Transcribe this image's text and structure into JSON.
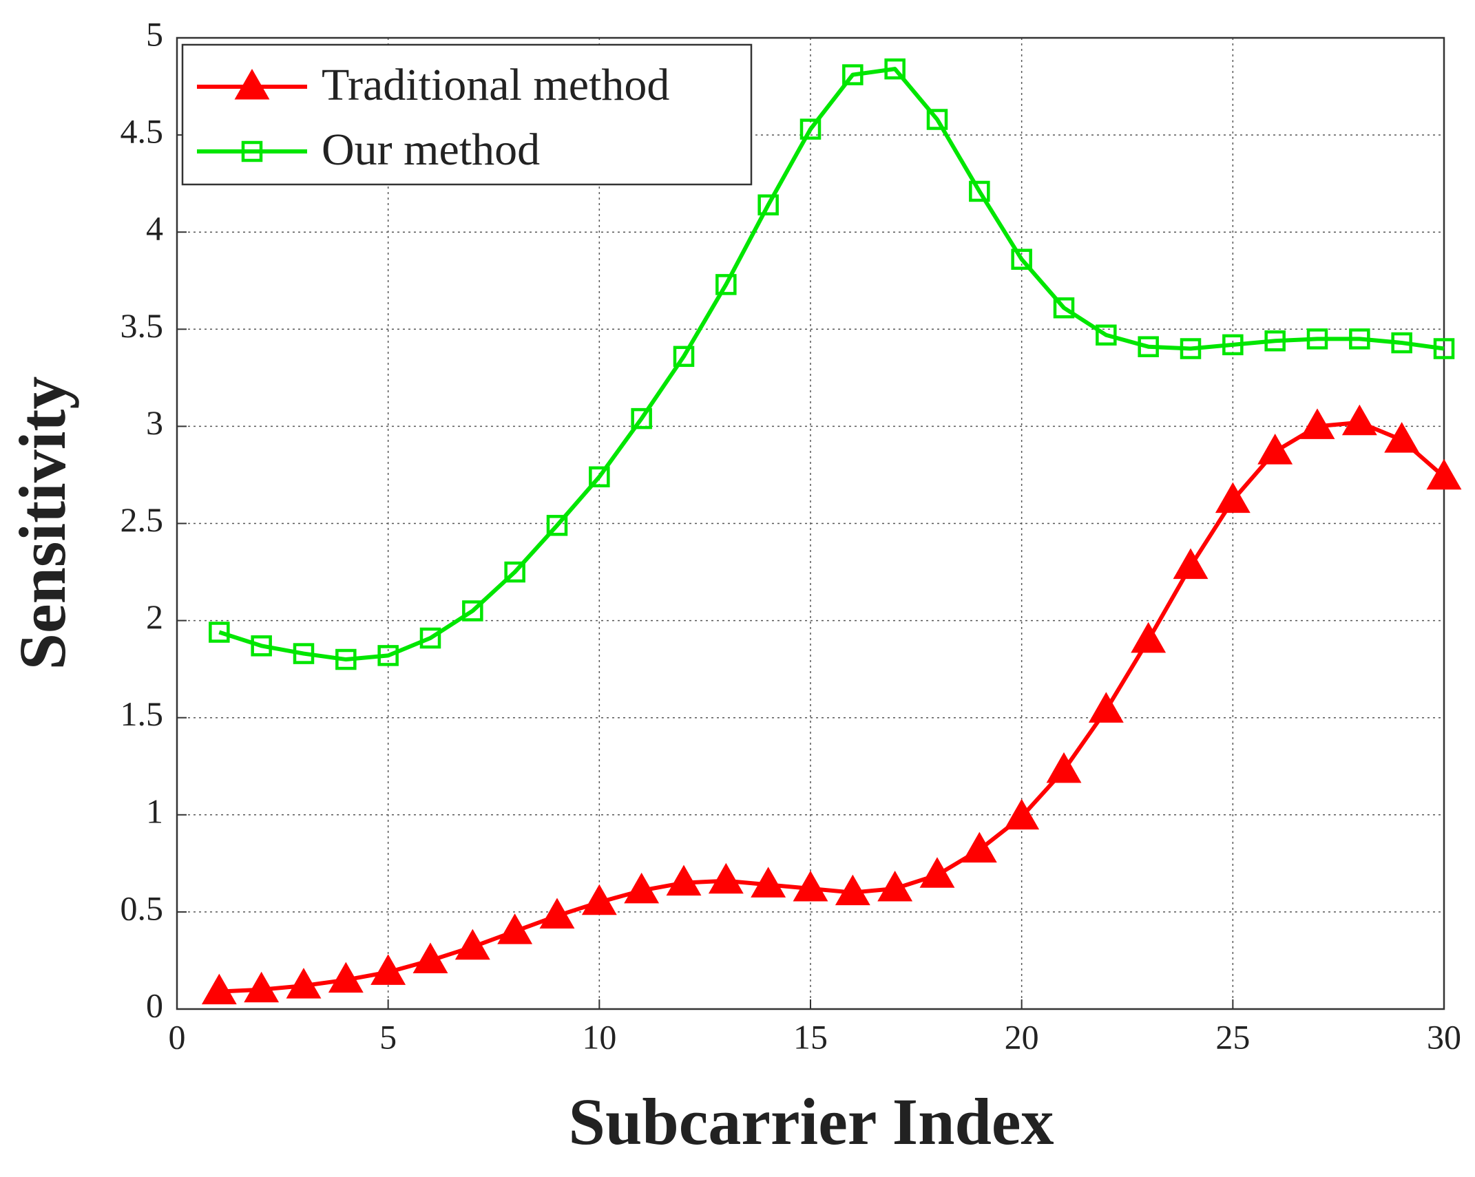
{
  "chart_data": {
    "type": "line",
    "xlabel": "Subcarrier Index",
    "ylabel": "Sensitivity",
    "x": [
      1,
      2,
      3,
      4,
      5,
      6,
      7,
      8,
      9,
      10,
      11,
      12,
      13,
      14,
      15,
      16,
      17,
      18,
      19,
      20,
      21,
      22,
      23,
      24,
      25,
      26,
      27,
      28,
      29,
      30
    ],
    "series": [
      {
        "name": "Traditional method",
        "color": "#ff0000",
        "marker": "triangle",
        "values": [
          0.09,
          0.1,
          0.12,
          0.15,
          0.19,
          0.25,
          0.32,
          0.4,
          0.48,
          0.55,
          0.61,
          0.65,
          0.66,
          0.64,
          0.62,
          0.6,
          0.62,
          0.69,
          0.82,
          0.99,
          1.23,
          1.54,
          1.9,
          2.28,
          2.62,
          2.87,
          3.0,
          3.02,
          2.93,
          2.74
        ]
      },
      {
        "name": "Our method",
        "color": "#00e600",
        "marker": "square",
        "values": [
          1.94,
          1.87,
          1.83,
          1.8,
          1.82,
          1.91,
          2.05,
          2.25,
          2.49,
          2.74,
          3.04,
          3.36,
          3.73,
          4.14,
          4.53,
          4.81,
          4.84,
          4.58,
          4.21,
          3.86,
          3.61,
          3.47,
          3.41,
          3.4,
          3.42,
          3.44,
          3.45,
          3.45,
          3.43,
          3.4
        ]
      }
    ],
    "xlim": [
      0,
      30
    ],
    "xticks": [
      0,
      5,
      10,
      15,
      20,
      25,
      30
    ],
    "ylim": [
      0,
      5
    ],
    "yticks": [
      0,
      0.5,
      1,
      1.5,
      2,
      2.5,
      3,
      3.5,
      4,
      4.5,
      5
    ],
    "grid": true,
    "legend": "upper left"
  }
}
